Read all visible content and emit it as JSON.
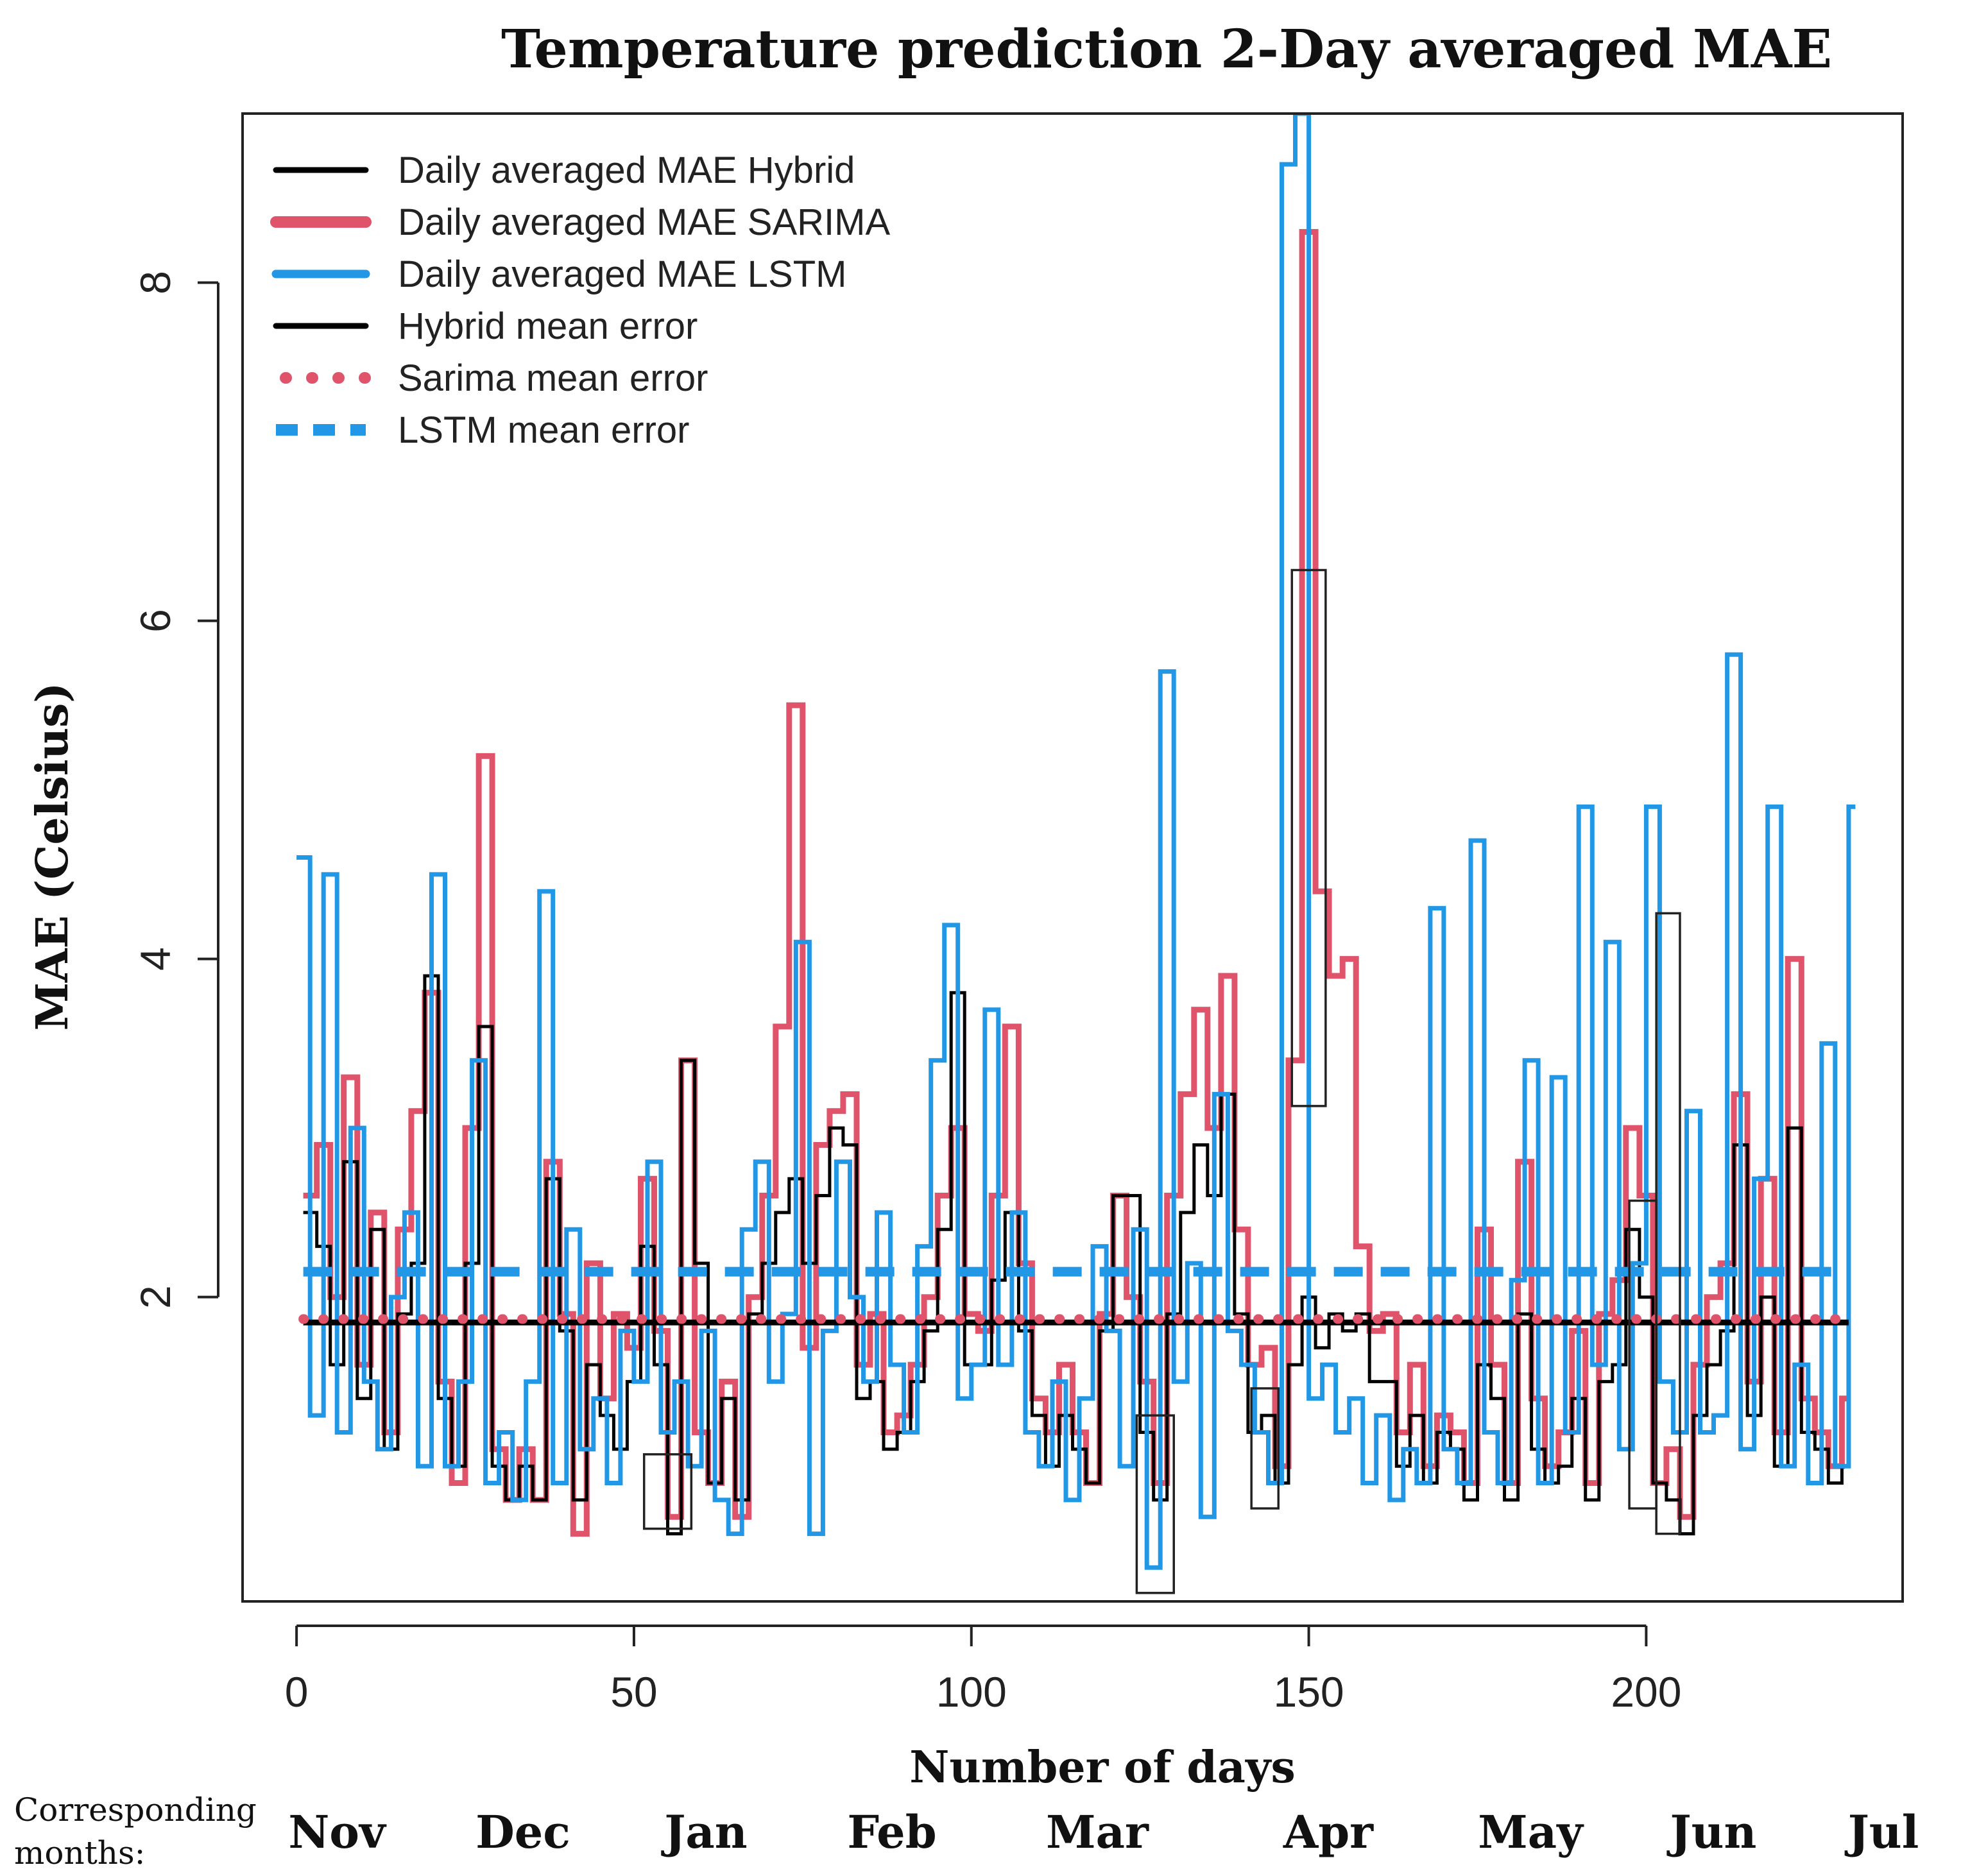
{
  "chart_data": {
    "type": "line",
    "title": "Temperature prediction 2-Day averaged MAE",
    "xlabel": "Number of days",
    "ylabel": "MAE (Celsius)",
    "xlim": [
      -8,
      238
    ],
    "ylim": [
      0.2,
      9.0
    ],
    "x_ticks": [
      0,
      50,
      100,
      150,
      200
    ],
    "y_ticks": [
      2,
      4,
      6,
      8
    ],
    "legend_position": "top-left",
    "legend": [
      {
        "label": "Daily averaged MAE Hybrid",
        "color": "#000000",
        "style": "solid",
        "width": 9
      },
      {
        "label": "Daily averaged MAE SARIMA",
        "color": "#DF536B",
        "style": "solid",
        "width": 18
      },
      {
        "label": "Daily averaged MAE LSTM",
        "color": "#2297E6",
        "style": "solid",
        "width": 13
      },
      {
        "label": "Hybrid mean error",
        "color": "#000000",
        "style": "solid",
        "width": 9
      },
      {
        "label": "Sarima mean error",
        "color": "#DF536B",
        "style": "dotted",
        "width": 18
      },
      {
        "label": "LSTM mean error",
        "color": "#2297E6",
        "style": "dashed",
        "width": 18
      }
    ],
    "mean_lines": [
      {
        "name": "Hybrid mean error",
        "value": 1.85,
        "color": "#000000"
      },
      {
        "name": "Sarima mean error",
        "value": 1.87,
        "color": "#DF536B"
      },
      {
        "name": "LSTM mean error",
        "value": 2.15,
        "color": "#2297E6"
      }
    ],
    "series": [
      {
        "name": "Daily averaged MAE SARIMA",
        "color": "#DF536B",
        "x": [
          1,
          3,
          5,
          7,
          9,
          11,
          13,
          15,
          17,
          19,
          21,
          23,
          25,
          27,
          29,
          31,
          33,
          35,
          37,
          39,
          41,
          43,
          45,
          47,
          49,
          51,
          53,
          55,
          57,
          59,
          61,
          63,
          65,
          67,
          69,
          71,
          73,
          75,
          77,
          79,
          81,
          83,
          85,
          87,
          89,
          91,
          93,
          95,
          97,
          99,
          101,
          103,
          105,
          107,
          109,
          111,
          113,
          115,
          117,
          119,
          121,
          123,
          125,
          127,
          129,
          131,
          133,
          135,
          137,
          139,
          141,
          143,
          145,
          147,
          149,
          151,
          153,
          155,
          157,
          159,
          161,
          163,
          165,
          167,
          169,
          171,
          173,
          175,
          177,
          179,
          181,
          183,
          185,
          187,
          189,
          191,
          193,
          195,
          197,
          199,
          201,
          203,
          205,
          207,
          209,
          211,
          213,
          215,
          217,
          219,
          221,
          223,
          225,
          227,
          229
        ],
        "values": [
          2.6,
          2.9,
          2.0,
          3.3,
          1.6,
          2.5,
          1.2,
          2.4,
          3.1,
          3.8,
          1.5,
          0.9,
          3.0,
          5.2,
          1.1,
          0.8,
          1.1,
          0.8,
          2.8,
          1.9,
          0.6,
          2.2,
          1.4,
          1.9,
          1.7,
          2.7,
          1.8,
          0.7,
          3.4,
          1.2,
          0.9,
          1.5,
          0.7,
          2.0,
          2.6,
          3.6,
          5.5,
          1.7,
          2.9,
          3.1,
          3.2,
          1.6,
          1.9,
          1.2,
          1.3,
          1.6,
          2.0,
          2.6,
          3.0,
          1.9,
          1.8,
          2.6,
          3.6,
          2.2,
          1.4,
          1.2,
          1.6,
          1.2,
          0.9,
          1.9,
          2.6,
          2.0,
          1.5,
          0.9,
          2.6,
          3.2,
          3.7,
          3.0,
          3.9,
          2.4,
          1.6,
          1.7,
          1.0,
          3.4,
          8.3,
          4.4,
          3.9,
          4.0,
          2.3,
          1.8,
          1.9,
          1.2,
          1.6,
          1.0,
          1.3,
          1.2,
          0.9,
          2.4,
          1.6,
          0.9,
          2.8,
          1.4,
          1.0,
          1.2,
          1.8,
          0.9,
          1.9,
          2.1,
          3.0,
          2.6,
          0.9,
          1.1,
          0.7,
          1.6,
          2.0,
          2.2,
          3.2,
          1.5,
          2.7,
          1.2,
          4.0,
          1.4,
          1.2,
          1.0,
          1.4
        ]
      },
      {
        "name": "Daily averaged MAE Hybrid",
        "color": "#000000",
        "x": [
          1,
          3,
          5,
          7,
          9,
          11,
          13,
          15,
          17,
          19,
          21,
          23,
          25,
          27,
          29,
          31,
          33,
          35,
          37,
          39,
          41,
          43,
          45,
          47,
          49,
          51,
          53,
          55,
          57,
          59,
          61,
          63,
          65,
          67,
          69,
          71,
          73,
          75,
          77,
          79,
          81,
          83,
          85,
          87,
          89,
          91,
          93,
          95,
          97,
          99,
          101,
          103,
          105,
          107,
          109,
          111,
          113,
          115,
          117,
          119,
          121,
          123,
          125,
          127,
          129,
          131,
          133,
          135,
          137,
          139,
          141,
          143,
          145,
          147,
          149,
          151,
          153,
          155,
          157,
          159,
          161,
          163,
          165,
          167,
          169,
          171,
          173,
          175,
          177,
          179,
          181,
          183,
          185,
          187,
          189,
          191,
          193,
          195,
          197,
          199,
          201,
          203,
          205,
          207,
          209,
          211,
          213,
          215,
          217,
          219,
          221,
          223,
          225,
          227,
          229
        ],
        "values": [
          2.5,
          2.3,
          1.6,
          2.8,
          1.4,
          2.4,
          1.1,
          1.9,
          2.2,
          3.9,
          1.4,
          1.0,
          2.2,
          3.6,
          1.0,
          0.8,
          1.0,
          0.8,
          2.7,
          1.8,
          0.8,
          1.6,
          1.3,
          1.1,
          1.5,
          2.3,
          1.6,
          0.6,
          3.4,
          2.2,
          0.9,
          1.4,
          0.8,
          1.9,
          2.2,
          2.5,
          2.7,
          2.2,
          2.6,
          3.0,
          2.9,
          1.4,
          1.5,
          1.1,
          1.2,
          1.5,
          1.8,
          2.4,
          3.8,
          1.6,
          1.6,
          2.1,
          2.5,
          1.8,
          1.3,
          1.0,
          1.3,
          1.1,
          0.9,
          1.8,
          2.6,
          2.6,
          1.2,
          0.8,
          1.9,
          2.5,
          2.9,
          2.6,
          3.2,
          1.9,
          1.2,
          1.3,
          0.9,
          1.6,
          2.0,
          1.7,
          1.9,
          1.8,
          1.9,
          1.5,
          1.5,
          1.0,
          1.3,
          0.9,
          1.2,
          1.1,
          0.8,
          1.6,
          1.4,
          0.8,
          1.9,
          1.1,
          0.9,
          1.0,
          1.4,
          0.8,
          1.5,
          1.6,
          2.4,
          2.0,
          0.9,
          0.8,
          0.6,
          1.3,
          1.6,
          1.8,
          2.9,
          1.3,
          2.0,
          1.0,
          3.0,
          1.2,
          1.1,
          0.9,
          1.0
        ]
      },
      {
        "name": "Daily averaged MAE LSTM",
        "color": "#2297E6",
        "x": [
          0,
          2,
          4,
          6,
          8,
          10,
          12,
          14,
          16,
          18,
          20,
          22,
          24,
          26,
          28,
          30,
          32,
          34,
          36,
          38,
          40,
          42,
          44,
          46,
          48,
          50,
          52,
          54,
          56,
          58,
          60,
          62,
          64,
          66,
          68,
          70,
          72,
          74,
          76,
          78,
          80,
          82,
          84,
          86,
          88,
          90,
          92,
          94,
          96,
          98,
          100,
          102,
          104,
          106,
          108,
          110,
          112,
          114,
          116,
          118,
          120,
          122,
          124,
          126,
          128,
          130,
          132,
          134,
          136,
          138,
          140,
          142,
          144,
          146,
          148,
          150,
          152,
          154,
          156,
          158,
          160,
          162,
          164,
          166,
          168,
          170,
          172,
          174,
          176,
          178,
          180,
          182,
          184,
          186,
          188,
          190,
          192,
          194,
          196,
          198,
          200,
          202,
          204,
          206,
          208,
          210,
          212,
          214,
          216,
          218,
          220,
          222,
          224,
          226,
          228,
          230
        ],
        "values": [
          4.6,
          1.3,
          4.5,
          1.2,
          3.0,
          1.5,
          1.1,
          2.0,
          2.5,
          1.0,
          4.5,
          1.0,
          1.5,
          3.4,
          0.9,
          1.2,
          0.8,
          1.5,
          4.4,
          0.9,
          2.4,
          1.1,
          1.4,
          0.9,
          1.8,
          1.5,
          2.8,
          1.2,
          1.5,
          1.0,
          1.8,
          0.8,
          0.6,
          2.4,
          2.8,
          1.5,
          1.9,
          4.1,
          0.6,
          1.8,
          2.8,
          2.0,
          1.5,
          2.5,
          1.6,
          1.2,
          2.3,
          3.4,
          4.2,
          1.4,
          1.6,
          3.7,
          1.6,
          2.5,
          1.2,
          1.0,
          1.5,
          0.8,
          1.4,
          2.3,
          1.8,
          1.0,
          2.4,
          0.4,
          5.7,
          1.5,
          2.2,
          0.7,
          3.2,
          1.8,
          1.6,
          1.2,
          0.9,
          8.7,
          9.0,
          1.4,
          1.6,
          1.2,
          1.4,
          0.9,
          1.3,
          0.8,
          1.1,
          0.9,
          4.3,
          1.1,
          0.9,
          4.7,
          1.2,
          0.9,
          2.1,
          3.4,
          0.9,
          3.3,
          1.2,
          4.9,
          1.6,
          4.1,
          1.1,
          2.2,
          4.9,
          1.5,
          1.2,
          3.1,
          1.2,
          1.3,
          5.8,
          1.1,
          2.7,
          4.9,
          1.0,
          1.6,
          0.9,
          3.5,
          1.0,
          4.9
        ]
      }
    ],
    "highlight_boxes": [
      {
        "x0": 51.5,
        "x1": 58.5,
        "y0": 0.63,
        "y1": 1.07
      },
      {
        "x0": 124.5,
        "x1": 130.0,
        "y0": 0.25,
        "y1": 1.3
      },
      {
        "x0": 141.5,
        "x1": 145.5,
        "y0": 0.75,
        "y1": 1.46
      },
      {
        "x0": 147.5,
        "x1": 152.5,
        "y0": 3.13,
        "y1": 6.3
      },
      {
        "x0": 197.5,
        "x1": 201.5,
        "y0": 0.75,
        "y1": 2.57
      },
      {
        "x0": 201.5,
        "x1": 205.0,
        "y0": 0.6,
        "y1": 4.27
      }
    ],
    "months_caption": "Corresponding months:",
    "months": [
      "Nov",
      "Dec",
      "Jan",
      "Feb",
      "Mar",
      "Apr",
      "May",
      "Jun",
      "Jul"
    ]
  }
}
